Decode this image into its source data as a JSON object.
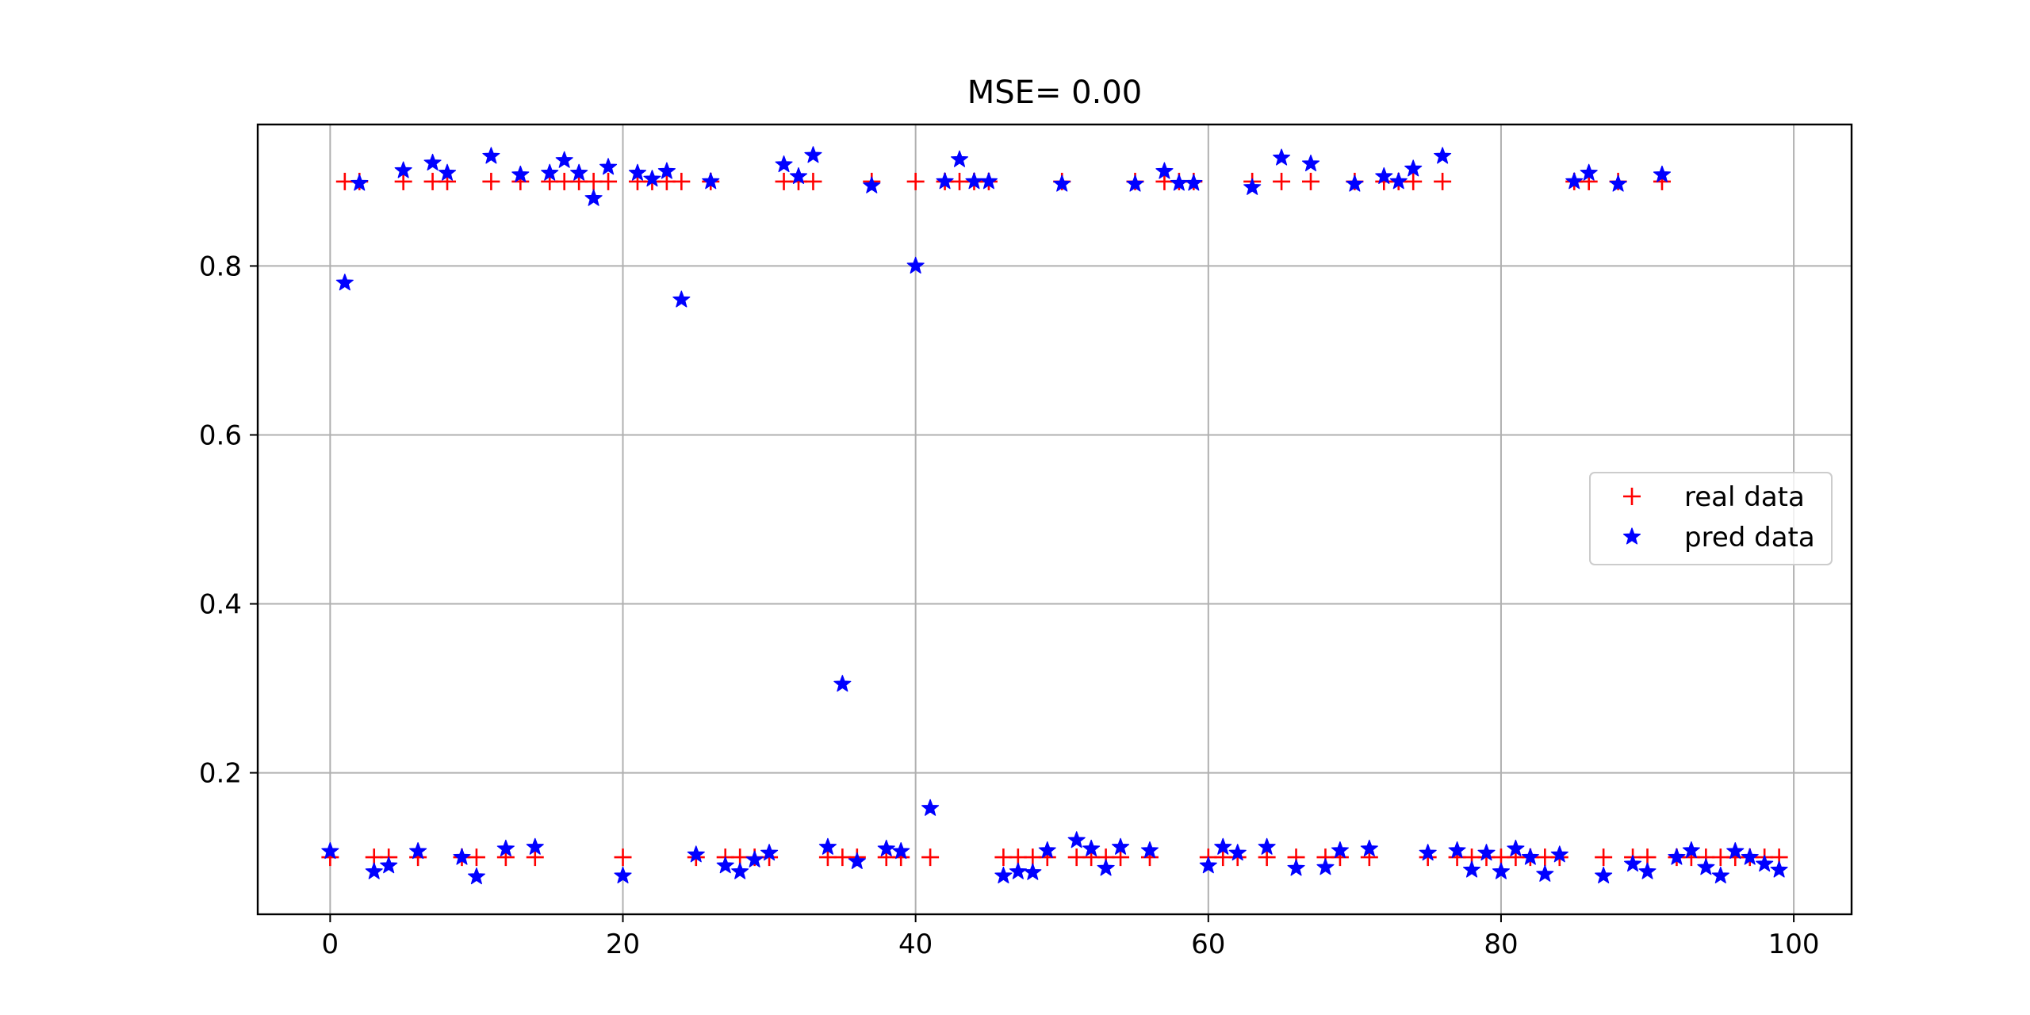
{
  "chart_data": {
    "type": "scatter",
    "title": "MSE= 0.00",
    "xlabel": "",
    "ylabel": "",
    "xlim": [
      -4.95,
      103.95
    ],
    "ylim": [
      0.0325,
      0.9675
    ],
    "xticks": [
      0,
      20,
      40,
      60,
      80,
      100
    ],
    "yticks": [
      0.2,
      0.4,
      0.6,
      0.8
    ],
    "xtick_labels": [
      "0",
      "20",
      "40",
      "60",
      "80",
      "100"
    ],
    "ytick_labels": [
      "0.2",
      "0.4",
      "0.6",
      "0.8"
    ],
    "grid": true,
    "legend_position": "center-right",
    "x": [
      0,
      1,
      2,
      3,
      4,
      5,
      6,
      7,
      8,
      9,
      10,
      11,
      12,
      13,
      14,
      15,
      16,
      17,
      18,
      19,
      20,
      21,
      22,
      23,
      24,
      25,
      26,
      27,
      28,
      29,
      30,
      31,
      32,
      33,
      34,
      35,
      36,
      37,
      38,
      39,
      40,
      41,
      42,
      43,
      44,
      45,
      46,
      47,
      48,
      49,
      50,
      51,
      52,
      53,
      54,
      55,
      56,
      57,
      58,
      59,
      60,
      61,
      62,
      63,
      64,
      65,
      66,
      67,
      68,
      69,
      70,
      71,
      72,
      73,
      74,
      75,
      76,
      77,
      78,
      79,
      80,
      81,
      82,
      83,
      84,
      85,
      86,
      87,
      88,
      89,
      90,
      91,
      92,
      93,
      94,
      95,
      96,
      97,
      98,
      99
    ],
    "series": [
      {
        "name": "real data",
        "marker": "+",
        "color": "#ff0000",
        "values": [
          0.1,
          0.9,
          0.9,
          0.1,
          0.1,
          0.9,
          0.1,
          0.9,
          0.9,
          0.1,
          0.1,
          0.9,
          0.1,
          0.9,
          0.1,
          0.9,
          0.9,
          0.9,
          0.9,
          0.9,
          0.1,
          0.9,
          0.9,
          0.9,
          0.9,
          0.1,
          0.9,
          0.1,
          0.1,
          0.1,
          0.1,
          0.9,
          0.9,
          0.9,
          0.1,
          0.1,
          0.1,
          0.9,
          0.1,
          0.1,
          0.9,
          0.1,
          0.9,
          0.9,
          0.9,
          0.9,
          0.1,
          0.1,
          0.1,
          0.1,
          0.9,
          0.1,
          0.1,
          0.1,
          0.1,
          0.9,
          0.1,
          0.9,
          0.9,
          0.9,
          0.1,
          0.1,
          0.1,
          0.9,
          0.1,
          0.9,
          0.1,
          0.9,
          0.1,
          0.1,
          0.9,
          0.1,
          0.9,
          0.9,
          0.9,
          0.1,
          0.9,
          0.1,
          0.1,
          0.1,
          0.1,
          0.1,
          0.1,
          0.1,
          0.1,
          0.9,
          0.9,
          0.1,
          0.9,
          0.1,
          0.1,
          0.9,
          0.1,
          0.1,
          0.1,
          0.1,
          0.1,
          0.1,
          0.1,
          0.1
        ]
      },
      {
        "name": "pred data",
        "marker": "*",
        "color": "#0000ff",
        "values": [
          0.107,
          0.78,
          0.898,
          0.083,
          0.09,
          0.913,
          0.107,
          0.922,
          0.91,
          0.1,
          0.077,
          0.93,
          0.11,
          0.908,
          0.112,
          0.91,
          0.925,
          0.91,
          0.88,
          0.917,
          0.078,
          0.91,
          0.903,
          0.912,
          0.76,
          0.103,
          0.9,
          0.09,
          0.083,
          0.097,
          0.105,
          0.92,
          0.906,
          0.931,
          0.112,
          0.305,
          0.095,
          0.895,
          0.11,
          0.107,
          0.8,
          0.158,
          0.9,
          0.926,
          0.9,
          0.9,
          0.078,
          0.083,
          0.082,
          0.108,
          0.897,
          0.12,
          0.11,
          0.087,
          0.112,
          0.897,
          0.108,
          0.912,
          0.898,
          0.898,
          0.09,
          0.112,
          0.105,
          0.893,
          0.112,
          0.928,
          0.087,
          0.921,
          0.088,
          0.108,
          0.897,
          0.11,
          0.906,
          0.9,
          0.915,
          0.105,
          0.93,
          0.108,
          0.085,
          0.105,
          0.083,
          0.11,
          0.1,
          0.08,
          0.103,
          0.9,
          0.91,
          0.078,
          0.897,
          0.092,
          0.083,
          0.908,
          0.1,
          0.108,
          0.088,
          0.078,
          0.107,
          0.1,
          0.092,
          0.085
        ]
      }
    ]
  }
}
